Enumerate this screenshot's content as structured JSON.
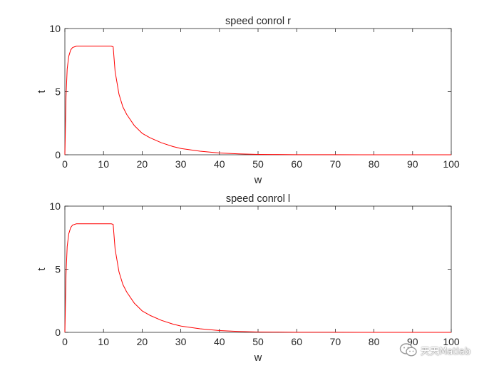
{
  "chart_data": [
    {
      "type": "line",
      "title": "speed conrol r",
      "xlabel": "w",
      "ylabel": "t",
      "xlim": [
        0,
        100
      ],
      "ylim": [
        0,
        10
      ],
      "xticks": [
        0,
        10,
        20,
        30,
        40,
        50,
        60,
        70,
        80,
        90,
        100
      ],
      "yticks": [
        0,
        5,
        10
      ],
      "grid": false,
      "color": "#ff0000",
      "series": [
        {
          "x": [
            0,
            0.3,
            0.6,
            1,
            1.5,
            2,
            2.5,
            3,
            4,
            5,
            6,
            8,
            10,
            12,
            12.5,
            13,
            14,
            15,
            16,
            18,
            20,
            22,
            25,
            28,
            30,
            35,
            40,
            45,
            50,
            55,
            60,
            70,
            80,
            90,
            100
          ],
          "y": [
            0,
            4.6,
            6.8,
            7.8,
            8.3,
            8.5,
            8.55,
            8.6,
            8.6,
            8.6,
            8.6,
            8.6,
            8.6,
            8.6,
            8.55,
            6.6,
            4.8,
            3.8,
            3.2,
            2.3,
            1.7,
            1.35,
            0.95,
            0.65,
            0.5,
            0.28,
            0.14,
            0.07,
            0.03,
            0.02,
            0.01,
            0.005,
            0.003,
            0.002,
            0.001
          ]
        }
      ]
    },
    {
      "type": "line",
      "title": "speed conrol l",
      "xlabel": "w",
      "ylabel": "t",
      "xlim": [
        0,
        100
      ],
      "ylim": [
        0,
        10
      ],
      "xticks": [
        0,
        10,
        20,
        30,
        40,
        50,
        60,
        70,
        80,
        90,
        100
      ],
      "yticks": [
        0,
        5,
        10
      ],
      "grid": false,
      "color": "#ff0000",
      "series": [
        {
          "x": [
            0,
            0.3,
            0.6,
            1,
            1.5,
            2,
            2.5,
            3,
            4,
            5,
            6,
            8,
            10,
            12,
            12.5,
            13,
            14,
            15,
            16,
            18,
            20,
            22,
            25,
            28,
            30,
            35,
            40,
            45,
            50,
            55,
            60,
            70,
            80,
            90,
            100
          ],
          "y": [
            0,
            4.6,
            6.8,
            7.8,
            8.3,
            8.5,
            8.55,
            8.6,
            8.6,
            8.6,
            8.6,
            8.6,
            8.6,
            8.6,
            8.55,
            6.6,
            4.8,
            3.8,
            3.2,
            2.3,
            1.7,
            1.35,
            0.95,
            0.65,
            0.5,
            0.28,
            0.14,
            0.07,
            0.03,
            0.02,
            0.01,
            0.005,
            0.003,
            0.002,
            0.001
          ]
        }
      ]
    }
  ],
  "watermark": {
    "text": "天天Matlab",
    "icon": "wechat-icon"
  }
}
